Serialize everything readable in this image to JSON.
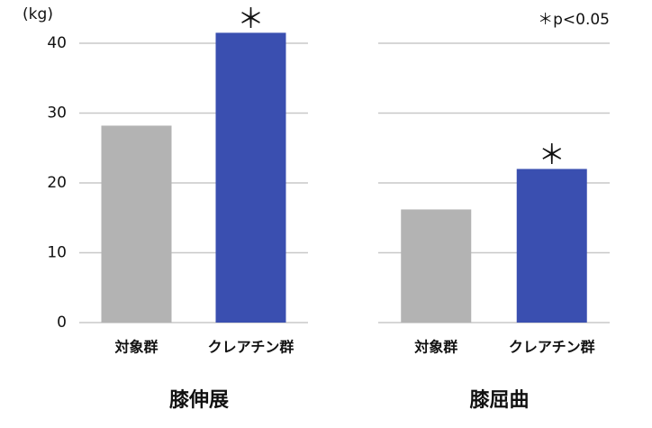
{
  "chart_data": [
    {
      "type": "bar",
      "title": "膝伸展",
      "ylabel": "(kg)",
      "categories": [
        "対象群",
        "クレアチン群"
      ],
      "values": [
        28.2,
        41.5
      ],
      "colors": [
        "#b3b3b3",
        "#3a4fb0"
      ],
      "annotations": [
        null,
        "＊"
      ],
      "ylim": [
        0,
        40
      ],
      "yticks": [
        0,
        10,
        20,
        30,
        40
      ],
      "tick_labels": true,
      "grid": true
    },
    {
      "type": "bar",
      "title": "膝屈曲",
      "note": "＊p<0.05",
      "categories": [
        "対象群",
        "クレアチン群"
      ],
      "values": [
        16.2,
        22.0
      ],
      "colors": [
        "#b3b3b3",
        "#3a4fb0"
      ],
      "annotations": [
        null,
        "＊"
      ],
      "ylim": [
        0,
        40
      ],
      "yticks": [
        0,
        10,
        20,
        30,
        40
      ],
      "tick_labels": false,
      "grid": true
    }
  ]
}
